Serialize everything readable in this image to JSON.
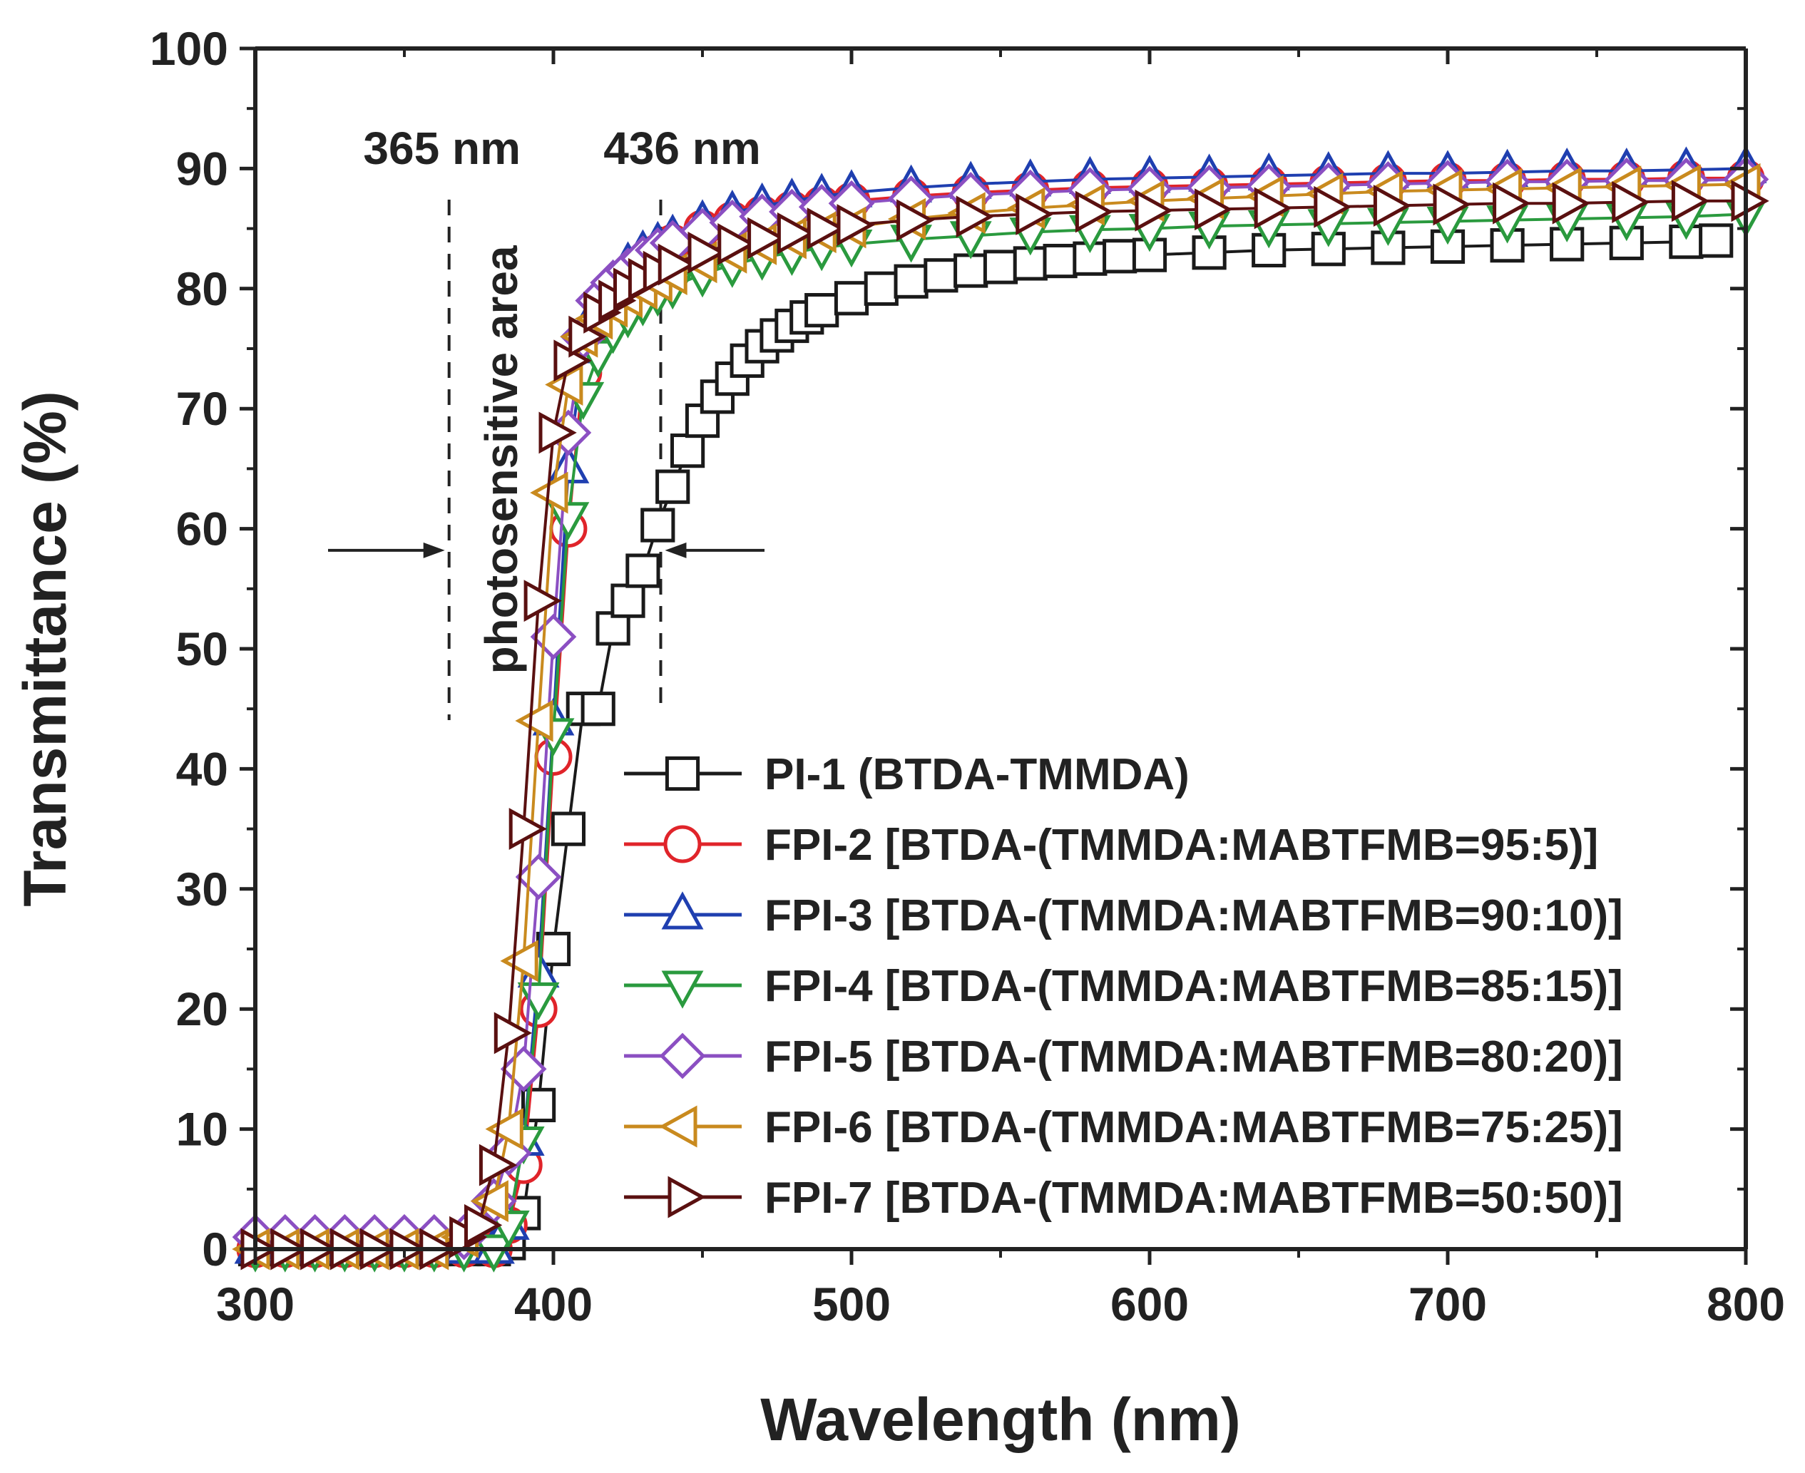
{
  "chart_data": {
    "type": "line",
    "title": "",
    "xlabel": "Wavelength (nm)",
    "ylabel": "Transmittance (%)",
    "xlim": [
      300,
      800
    ],
    "ylim": [
      0,
      100
    ],
    "x_ticks": [
      "300",
      "400",
      "500",
      "600",
      "700",
      "800"
    ],
    "y_ticks": [
      "0",
      "10",
      "20",
      "30",
      "40",
      "50",
      "60",
      "70",
      "80",
      "90",
      "100"
    ],
    "grid": false,
    "legend_position": "bottom-right",
    "annotations": {
      "line_365": {
        "label": "365 nm",
        "x": 365
      },
      "line_436": {
        "label": "436 nm",
        "x": 436
      },
      "region": {
        "label": "photosensitive area"
      }
    },
    "series": [
      {
        "name": "PI-1 (BTDA-TMMDA)",
        "color": "#1a1a1a",
        "marker": "square",
        "x": [
          300,
          310,
          320,
          330,
          340,
          350,
          360,
          370,
          380,
          385,
          390,
          395,
          400,
          405,
          410,
          415,
          420,
          425,
          430,
          435,
          440,
          445,
          450,
          455,
          460,
          465,
          470,
          475,
          480,
          485,
          490,
          500,
          510,
          520,
          530,
          540,
          550,
          560,
          570,
          580,
          590,
          600,
          620,
          640,
          660,
          680,
          700,
          720,
          740,
          760,
          780,
          790
        ],
        "y": [
          0,
          0,
          0,
          0,
          0,
          0,
          0,
          0,
          0,
          0.5,
          3,
          12,
          25,
          35,
          45,
          45,
          51.7,
          54,
          56.5,
          60.3,
          63.5,
          66.5,
          69,
          71,
          72.5,
          74,
          75.2,
          76.1,
          76.9,
          77.6,
          78.2,
          79.2,
          80,
          80.6,
          81.1,
          81.5,
          81.8,
          82.1,
          82.3,
          82.5,
          82.7,
          82.8,
          83,
          83.2,
          83.3,
          83.4,
          83.5,
          83.6,
          83.7,
          83.8,
          83.9,
          84
        ]
      },
      {
        "name": "FPI-2 [BTDA-(TMMDA:MABTFMB=95:5)]",
        "color": "#e0242a",
        "marker": "circle",
        "x": [
          300,
          310,
          320,
          330,
          340,
          350,
          360,
          370,
          380,
          385,
          390,
          395,
          400,
          405,
          410,
          415,
          420,
          425,
          430,
          435,
          440,
          450,
          460,
          470,
          480,
          490,
          500,
          520,
          540,
          560,
          580,
          600,
          620,
          640,
          660,
          680,
          700,
          720,
          740,
          760,
          780,
          800
        ],
        "y": [
          0,
          0,
          0,
          0,
          0,
          0,
          0,
          0,
          0,
          2,
          7,
          20,
          41,
          60,
          73,
          77,
          79,
          81,
          82,
          83,
          83.8,
          85,
          85.7,
          86.2,
          86.6,
          87,
          87.3,
          87.7,
          88,
          88.2,
          88.4,
          88.5,
          88.6,
          88.7,
          88.8,
          88.9,
          89,
          89,
          89.1,
          89.1,
          89.2,
          89.2
        ]
      },
      {
        "name": "FPI-3 [BTDA-(TMMDA:MABTFMB=90:10)]",
        "color": "#1f3fb0",
        "marker": "triangle-up",
        "x": [
          300,
          310,
          320,
          330,
          340,
          350,
          360,
          370,
          380,
          385,
          390,
          395,
          400,
          405,
          410,
          415,
          420,
          425,
          430,
          435,
          440,
          450,
          460,
          470,
          480,
          490,
          500,
          520,
          540,
          560,
          580,
          600,
          620,
          640,
          660,
          680,
          700,
          720,
          740,
          760,
          780,
          800
        ],
        "y": [
          0,
          0,
          0,
          0,
          0,
          0,
          0,
          0,
          0,
          2,
          9,
          23,
          44,
          65,
          75,
          78.5,
          80.5,
          82,
          83,
          83.7,
          84.3,
          85.5,
          86.3,
          86.9,
          87.3,
          87.7,
          88,
          88.4,
          88.7,
          88.9,
          89.1,
          89.2,
          89.3,
          89.4,
          89.5,
          89.6,
          89.6,
          89.7,
          89.8,
          89.8,
          89.9,
          90
        ]
      },
      {
        "name": "FPI-4 [BTDA-(TMMDA:MABTFMB=85:15)]",
        "color": "#2a9a3e",
        "marker": "triangle-down",
        "x": [
          300,
          310,
          320,
          330,
          340,
          350,
          360,
          370,
          380,
          385,
          390,
          395,
          400,
          405,
          410,
          415,
          420,
          425,
          430,
          435,
          440,
          450,
          460,
          470,
          480,
          490,
          500,
          520,
          540,
          560,
          580,
          600,
          620,
          640,
          660,
          680,
          700,
          720,
          740,
          760,
          780,
          800
        ],
        "y": [
          0,
          0,
          0,
          0,
          0,
          0,
          0,
          0,
          0,
          2,
          9,
          21,
          43,
          61,
          71,
          74.5,
          76.5,
          77.8,
          78.8,
          79.6,
          80.2,
          81.2,
          82,
          82.6,
          83,
          83.4,
          83.7,
          84.1,
          84.4,
          84.7,
          84.9,
          85,
          85.2,
          85.3,
          85.4,
          85.5,
          85.6,
          85.7,
          85.8,
          85.9,
          86,
          86.2
        ]
      },
      {
        "name": "FPI-5 [BTDA-(TMMDA:MABTFMB=80:20)]",
        "color": "#8b4fc2",
        "marker": "diamond",
        "x": [
          300,
          310,
          320,
          330,
          340,
          350,
          360,
          370,
          380,
          385,
          390,
          395,
          400,
          405,
          410,
          415,
          420,
          425,
          430,
          435,
          440,
          450,
          460,
          470,
          480,
          490,
          500,
          520,
          540,
          560,
          580,
          600,
          620,
          640,
          660,
          680,
          700,
          720,
          740,
          760,
          780,
          800
        ],
        "y": [
          1,
          1,
          1,
          1,
          1,
          1,
          1,
          1,
          4,
          8,
          15,
          31,
          51,
          68,
          76,
          79,
          80.5,
          81.5,
          82.5,
          83.2,
          83.8,
          84.8,
          85.5,
          86,
          86.4,
          86.8,
          87.1,
          87.5,
          87.8,
          88,
          88.2,
          88.3,
          88.4,
          88.5,
          88.6,
          88.7,
          88.8,
          88.9,
          88.9,
          89,
          89,
          89.1
        ]
      },
      {
        "name": "FPI-6 [BTDA-(TMMDA:MABTFMB=75:25)]",
        "color": "#c98a1e",
        "marker": "triangle-left",
        "x": [
          300,
          310,
          320,
          330,
          340,
          350,
          360,
          370,
          380,
          385,
          390,
          395,
          400,
          405,
          410,
          415,
          420,
          425,
          430,
          435,
          440,
          450,
          460,
          470,
          480,
          490,
          500,
          520,
          540,
          560,
          580,
          600,
          620,
          640,
          660,
          680,
          700,
          720,
          740,
          760,
          780,
          800
        ],
        "y": [
          0,
          0,
          0,
          0,
          0,
          0,
          0,
          1,
          4,
          10,
          24,
          44,
          63,
          72,
          76,
          77.5,
          78.5,
          79.3,
          80,
          80.6,
          81.2,
          82.2,
          83,
          83.7,
          84.2,
          84.7,
          85.1,
          85.8,
          86.3,
          86.7,
          87,
          87.3,
          87.5,
          87.7,
          87.9,
          88.1,
          88.2,
          88.3,
          88.4,
          88.5,
          88.6,
          88.7
        ]
      },
      {
        "name": "FPI-7 [BTDA-(TMMDA:MABTFMB=50:50)]",
        "color": "#5a1010",
        "marker": "triangle-right",
        "x": [
          300,
          310,
          320,
          330,
          340,
          350,
          360,
          370,
          375,
          380,
          385,
          390,
          395,
          400,
          405,
          410,
          415,
          420,
          425,
          430,
          435,
          440,
          450,
          460,
          470,
          480,
          490,
          500,
          520,
          540,
          560,
          580,
          600,
          620,
          640,
          660,
          680,
          700,
          720,
          740,
          760,
          780,
          800
        ],
        "y": [
          0,
          0,
          0,
          0,
          0,
          0,
          0,
          1,
          2,
          7,
          18,
          35,
          54,
          68,
          74,
          76,
          78,
          79,
          80,
          80.8,
          81.4,
          82,
          83,
          83.7,
          84.2,
          84.6,
          85,
          85.3,
          85.7,
          86,
          86.2,
          86.4,
          86.5,
          86.6,
          86.7,
          86.8,
          86.9,
          87,
          87.1,
          87.1,
          87.2,
          87.3,
          87.3
        ]
      }
    ]
  }
}
